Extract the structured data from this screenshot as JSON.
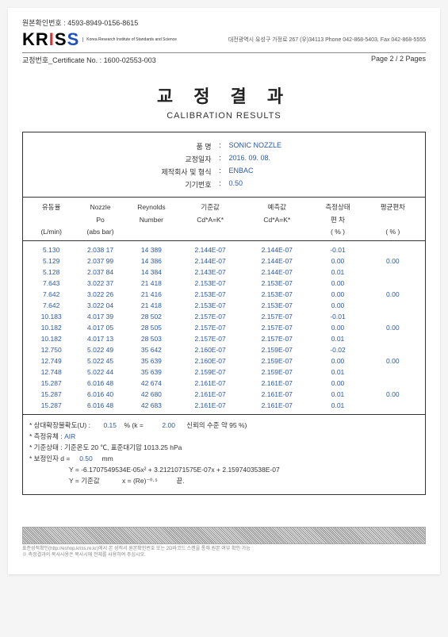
{
  "doc": {
    "ref_label": "원본확인번호 :",
    "ref_no": "4593-8949-0156-8615",
    "logo_sub": "Korea Research\nInstitute of\nStandards and Science",
    "contact": "대전광역시 유성구 가정로 267 (우)34113 Phone 042-868-5403, Fax 042-868-5555",
    "cert_label": "교정번호_Certificate No. :",
    "cert_no": "1600-02553-003",
    "page_label": "Page 2 / 2 Pages",
    "title_kr": "교 정 결 과",
    "title_en": "CALIBRATION RESULTS"
  },
  "meta": {
    "labels": {
      "name": "품 명",
      "date": "교정일자",
      "maker": "제작회사 및 형식",
      "devno": "기기번호"
    },
    "values": {
      "name": "SONIC NOZZLE",
      "date": "2016. 09. 08.",
      "maker": "ENBAC",
      "devno": "0.50"
    }
  },
  "columns": {
    "h1": [
      "유동율",
      "Nozzle",
      "Reynolds",
      "기준값",
      "예측값",
      "측정상태",
      "평균편차"
    ],
    "h2": [
      "",
      "Po",
      "Number",
      "Cd*A=K*",
      "Cd*A=K*",
      "편 차",
      ""
    ],
    "h3": [
      "(L/min)",
      "(abs bar)",
      "",
      "",
      "",
      "( % )",
      "( % )"
    ]
  },
  "rows": [
    [
      "5.130",
      "2.038 17",
      "14 389",
      "2.144E-07",
      "2.144E-07",
      "-0.01",
      ""
    ],
    [
      "5.129",
      "2.037 99",
      "14 386",
      "2.144E-07",
      "2.144E-07",
      "0.00",
      "0.00"
    ],
    [
      "5.128",
      "2.037 84",
      "14 384",
      "2.143E-07",
      "2.144E-07",
      "0.01",
      ""
    ],
    [
      "7.643",
      "3.022 37",
      "21 418",
      "2.153E-07",
      "2.153E-07",
      "0.00",
      ""
    ],
    [
      "7.642",
      "3.022 26",
      "21 416",
      "2.153E-07",
      "2.153E-07",
      "0.00",
      "0.00"
    ],
    [
      "7.642",
      "3.022 04",
      "21 418",
      "2.153E-07",
      "2.153E-07",
      "0.00",
      ""
    ],
    [
      "10.183",
      "4.017 39",
      "28 502",
      "2.157E-07",
      "2.157E-07",
      "-0.01",
      ""
    ],
    [
      "10.182",
      "4.017 05",
      "28 505",
      "2.157E-07",
      "2.157E-07",
      "0.00",
      "0.00"
    ],
    [
      "10.182",
      "4.017 13",
      "28 503",
      "2.157E-07",
      "2.157E-07",
      "0.01",
      ""
    ],
    [
      "12.750",
      "5.022 49",
      "35 642",
      "2.160E-07",
      "2.159E-07",
      "-0.02",
      ""
    ],
    [
      "12.749",
      "5.022 45",
      "35 639",
      "2.160E-07",
      "2.159E-07",
      "0.00",
      "0.00"
    ],
    [
      "12.748",
      "5.022 44",
      "35 639",
      "2.159E-07",
      "2.159E-07",
      "0.01",
      ""
    ],
    [
      "15.287",
      "6.016 48",
      "42 674",
      "2.161E-07",
      "2.161E-07",
      "0.00",
      ""
    ],
    [
      "15.287",
      "6.016 40",
      "42 680",
      "2.161E-07",
      "2.161E-07",
      "0.01",
      "0.00"
    ],
    [
      "15.287",
      "6.016 48",
      "42 683",
      "2.161E-07",
      "2.161E-07",
      "0.01",
      ""
    ]
  ],
  "footer": {
    "l1a": "* 상대확장불확도(U) :",
    "l1b": "0.15",
    "l1c": "%  (k =",
    "l1d": "2.00",
    "l1e": "신뢰의 수준 약 95 %)",
    "l2a": "* 측정유체  :",
    "l2b": "AIR",
    "l3a": "* 기준상태  : 기준온도 20 ℃, 표준대기압 1013.25 hPa",
    "l4a": "* 보정인자 d =",
    "l4b": "0.50",
    "l4c": "mm",
    "l5": "Y = -6.1707549534E-05x² + 3.2121071575E-07x + 2.1597403538E-07",
    "l6a": "Y = 기준값",
    "l6b": "x = (Re)⁻⁰·⁵",
    "l6c": "끝."
  },
  "fineprint": {
    "a": "표준성적확인(http://eshop.kriss.re.kr)에서 본 성적서 원본확인번호 또는 2D바코드 스캔을 통해 원본 여부 확인 가능",
    "b": "※ 측정결과의 복사사용은 복사시에 전체를 사용하여 주십시오."
  }
}
